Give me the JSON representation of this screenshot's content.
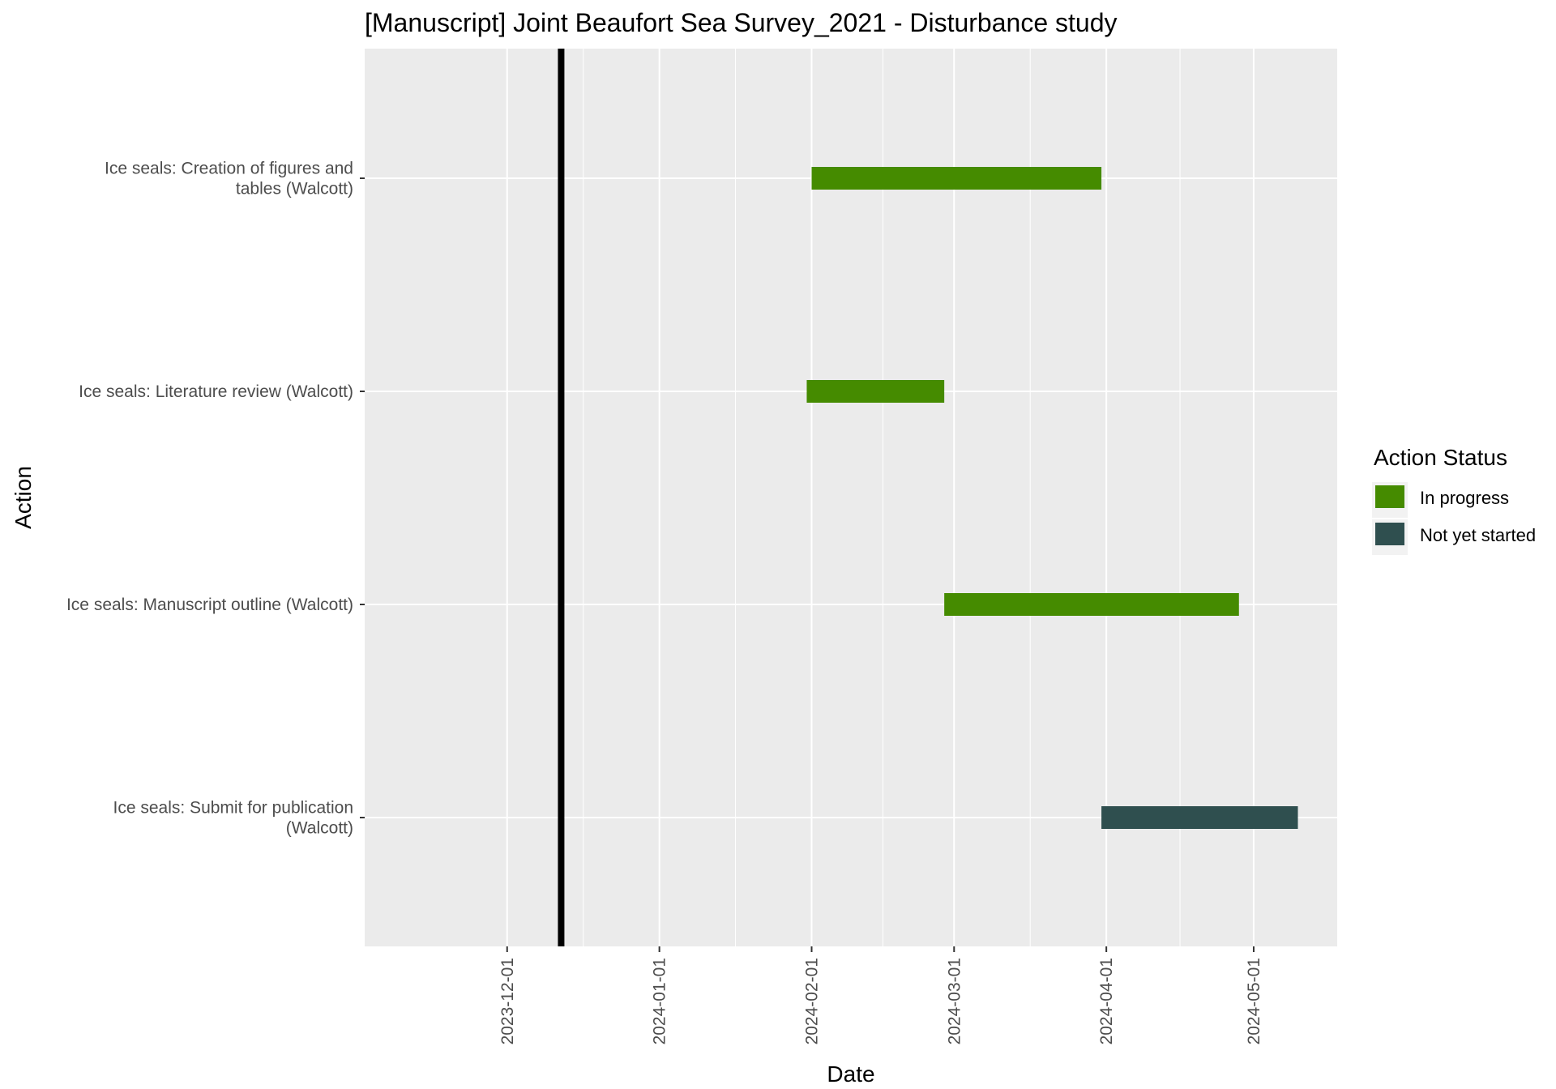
{
  "chart_data": {
    "type": "gantt",
    "title": "[Manuscript] Joint Beaufort Sea Survey_2021  - Disturbance study",
    "xlabel": "Date",
    "ylabel": "Action",
    "xlim": [
      "2023-11-02",
      "2024-05-18"
    ],
    "x_ticks": [
      "2023-12-01",
      "2024-01-01",
      "2024-02-01",
      "2024-03-01",
      "2024-04-01",
      "2024-05-01"
    ],
    "current_date_line": "2023-12-12",
    "grid": true,
    "legend": {
      "title": "Action Status",
      "placement": "right",
      "entries": [
        {
          "label": "In progress",
          "color": "#458b00"
        },
        {
          "label": "Not yet started",
          "color": "#2f4f4f"
        }
      ]
    },
    "tasks": [
      {
        "label_lines": [
          "Ice seals: Creation of figures and",
          "tables (Walcott)"
        ],
        "start": "2024-02-01",
        "end": "2024-03-31",
        "status": "In progress"
      },
      {
        "label_lines": [
          "Ice seals: Literature review (Walcott)"
        ],
        "start": "2024-01-31",
        "end": "2024-02-28",
        "status": "In progress"
      },
      {
        "label_lines": [
          "Ice seals: Manuscript outline (Walcott)"
        ],
        "start": "2024-02-28",
        "end": "2024-04-28",
        "status": "In progress"
      },
      {
        "label_lines": [
          "Ice seals: Submit for publication",
          "(Walcott)"
        ],
        "start": "2024-03-31",
        "end": "2024-05-10",
        "status": "Not yet started"
      }
    ]
  }
}
